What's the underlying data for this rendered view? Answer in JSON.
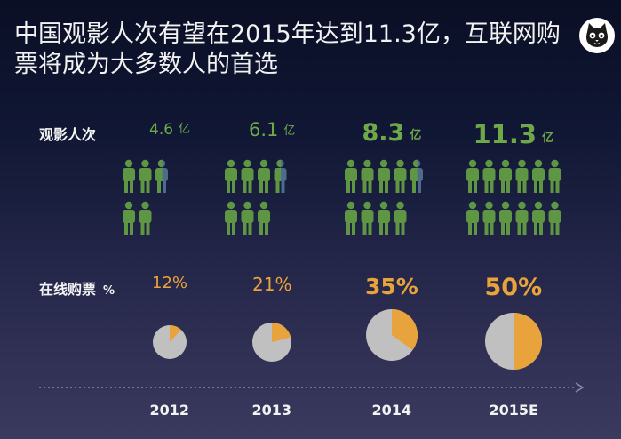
{
  "title": "中国观影人次有望在2015年达到11.3亿，互联网购票将成为大多数人的首选",
  "row_labels": {
    "viewers": "观影人次",
    "online": "在线购票",
    "online_unit": "%"
  },
  "colors": {
    "person_green": "#5e9643",
    "person_blue": "#4d6b8c",
    "value_green": "#6fa848",
    "pct_orange": "#e8a33c",
    "pie_gray": "#c0c0c0"
  },
  "chart_data": {
    "type": "infographic",
    "categories": [
      "2012",
      "2013",
      "2014",
      "2015E"
    ],
    "series": [
      {
        "name": "观影人次",
        "unit": "亿",
        "values": [
          4.6,
          6.1,
          8.3,
          11.3
        ],
        "labels": [
          "4.6",
          "6.1",
          "8.3",
          "11.3"
        ],
        "unit_labels": [
          "亿",
          "亿",
          "亿",
          "亿"
        ]
      },
      {
        "name": "在线购票 %",
        "unit": "%",
        "values": [
          12,
          21,
          35,
          50
        ],
        "labels": [
          "12%",
          "21%",
          "35%",
          "50%"
        ]
      }
    ]
  }
}
